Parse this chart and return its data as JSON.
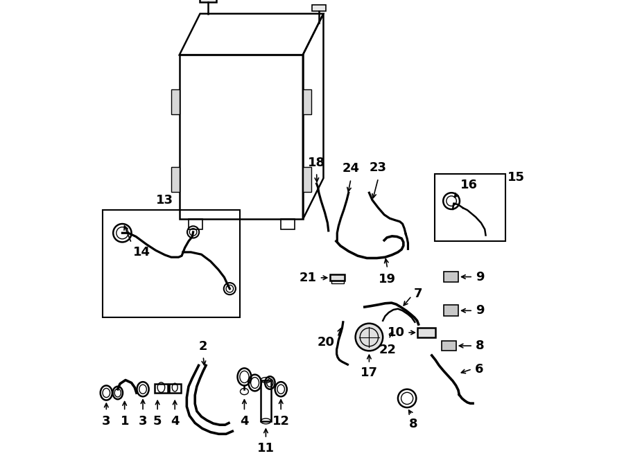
{
  "bg_color": "#ffffff",
  "line_color": "#000000",
  "fig_width": 9.0,
  "fig_height": 6.61,
  "dpi": 100,
  "label_fontsize": 13,
  "lw": 1.5,
  "component_lw": 1.8
}
